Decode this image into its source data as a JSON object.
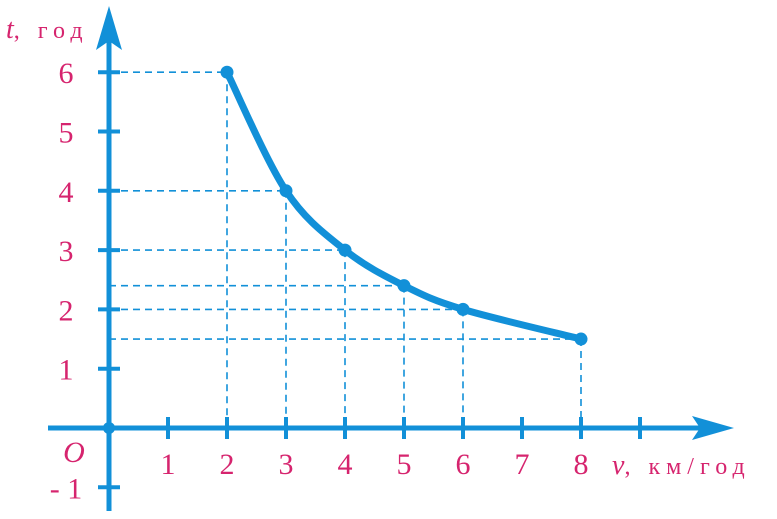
{
  "chart_data": {
    "type": "line",
    "title": "",
    "xlabel": "v, км/год",
    "ylabel": "t, год",
    "x_axis": {
      "var": "v",
      "unit": ", км/год"
    },
    "y_axis": {
      "var": "t",
      "unit": ", год"
    },
    "xlim": [
      0,
      10.5
    ],
    "ylim": [
      -1.4,
      7
    ],
    "x_ticks": [
      1,
      2,
      3,
      4,
      5,
      6,
      7,
      8,
      9
    ],
    "x_tick_labels": [
      {
        "x": 1,
        "label": "1"
      },
      {
        "x": 2,
        "label": "2"
      },
      {
        "x": 3,
        "label": "3"
      },
      {
        "x": 4,
        "label": "4"
      },
      {
        "x": 5,
        "label": "5"
      },
      {
        "x": 6,
        "label": "6"
      },
      {
        "x": 7,
        "label": "7"
      },
      {
        "x": 8,
        "label": "8"
      }
    ],
    "y_ticks": [
      -1,
      1,
      2,
      3,
      4,
      5,
      6
    ],
    "y_tick_labels": [
      {
        "y": -1,
        "label": "- 1"
      },
      {
        "y": 1,
        "label": "1"
      },
      {
        "y": 2,
        "label": "2"
      },
      {
        "y": 3,
        "label": "3"
      },
      {
        "y": 4,
        "label": "4"
      },
      {
        "y": 5,
        "label": "5"
      },
      {
        "y": 6,
        "label": "6"
      }
    ],
    "origin_label": "O",
    "series": [
      {
        "x": [
          2,
          3,
          4,
          5,
          6,
          8
        ],
        "y": [
          6,
          4,
          3,
          2.4,
          2,
          1.5
        ]
      }
    ],
    "projection_lines": true,
    "grid": false,
    "colors": {
      "axis": "#1290d8",
      "curve": "#1290d8",
      "guide": "#1290d8",
      "label": "#d6246e"
    }
  }
}
